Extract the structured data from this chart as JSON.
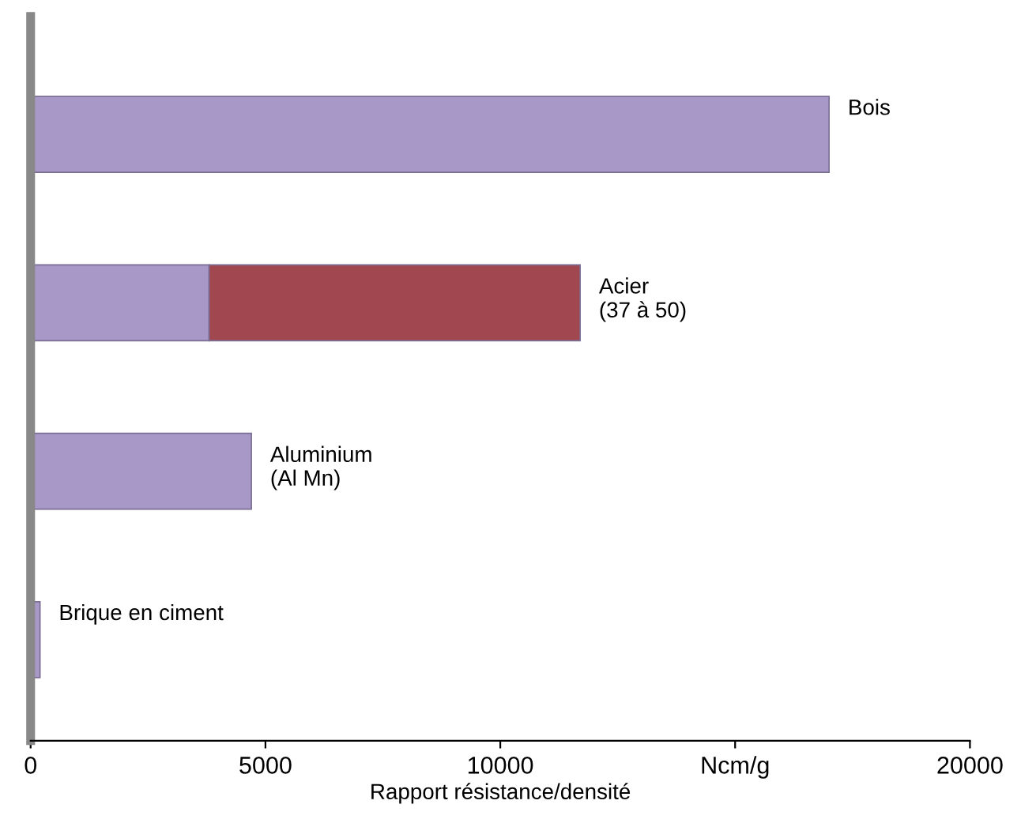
{
  "chart_data": {
    "type": "bar",
    "orientation": "horizontal",
    "stacked": true,
    "categories": [
      "Bois",
      "Acier\n(37 à 50)",
      "Aluminium\n(Al Mn)",
      "Brique en ciment"
    ],
    "series": [
      {
        "color": "#a898c8",
        "values": [
          17000,
          3800,
          4700,
          200
        ]
      },
      {
        "color": "#a0474f",
        "values": [
          null,
          7900,
          null,
          null
        ]
      }
    ],
    "xlim": [
      0,
      20000
    ],
    "xticks": [
      0,
      5000,
      10000,
      {
        "value": 15000,
        "label": "Ncm/g"
      },
      20000
    ],
    "xlabel": "Rapport résistance/densité",
    "tick_labels": "x",
    "grid": false,
    "legend": false
  }
}
